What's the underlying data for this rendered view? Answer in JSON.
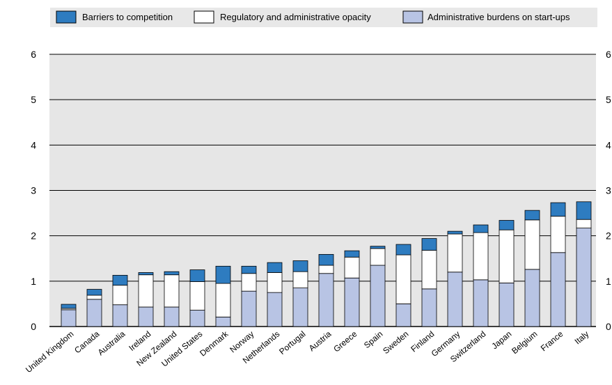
{
  "chart_data": {
    "type": "bar",
    "stacked": true,
    "title": "",
    "xlabel": "",
    "ylabel": "",
    "ylim": [
      0,
      6
    ],
    "yticks": [
      "0",
      "1",
      "2",
      "3",
      "4",
      "5",
      "6"
    ],
    "grid": true,
    "legend_position": "top",
    "categories": [
      "United Kingdom",
      "Canada",
      "Australia",
      "Ireland",
      "New Zealand",
      "United States",
      "Denmark",
      "Norway",
      "Netherlands",
      "Portugal",
      "Austria",
      "Greece",
      "Spain",
      "Sweden",
      "Finland",
      "Germany",
      "Switzerland",
      "Japan",
      "Belgium",
      "France",
      "Italy"
    ],
    "series": [
      {
        "name": "Administrative  burdens on start-ups",
        "color": "#b8c4e4",
        "values": [
          0.37,
          0.6,
          0.48,
          0.43,
          0.43,
          0.36,
          0.21,
          0.78,
          0.75,
          0.85,
          1.17,
          1.07,
          1.35,
          0.5,
          0.83,
          1.2,
          1.03,
          0.96,
          1.26,
          1.63,
          2.17
        ]
      },
      {
        "name": "Regulatory and administrative opacity",
        "color": "#ffffff",
        "values": [
          0.03,
          0.09,
          0.43,
          0.71,
          0.71,
          0.63,
          0.74,
          0.39,
          0.44,
          0.36,
          0.18,
          0.46,
          0.37,
          1.08,
          0.85,
          0.84,
          1.04,
          1.17,
          1.09,
          0.8,
          0.19
        ]
      },
      {
        "name": "Barriers to competition",
        "color": "#2e7cc0",
        "values": [
          0.09,
          0.13,
          0.22,
          0.05,
          0.07,
          0.26,
          0.38,
          0.16,
          0.22,
          0.24,
          0.24,
          0.14,
          0.05,
          0.23,
          0.26,
          0.06,
          0.17,
          0.21,
          0.21,
          0.3,
          0.39
        ]
      }
    ]
  },
  "legend": {
    "items": [
      {
        "label": "Barriers to competition",
        "color": "#2e7cc0"
      },
      {
        "label": "Regulatory and administrative opacity",
        "color": "#ffffff"
      },
      {
        "label": "Administrative  burdens on start-ups",
        "color": "#b8c4e4"
      }
    ],
    "background": "#e8e8e8"
  },
  "colors": {
    "plot_background": "#e6e6e6",
    "bar_edge": "#000000",
    "gridline": "#000000"
  }
}
